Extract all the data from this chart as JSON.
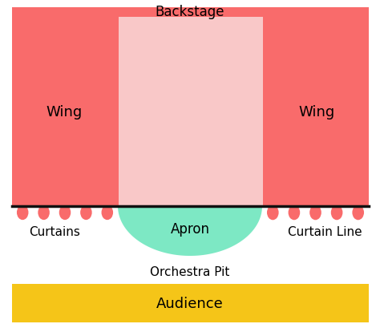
{
  "bg_color": "#ffffff",
  "wing_color": "#f96b6b",
  "stage_color": "#f9c8c8",
  "apron_color": "#7de8c4",
  "curtain_color": "#f96b6b",
  "audience_color": "#f5c518",
  "curtain_line_color": "#111111",
  "labels": {
    "backstage": "Backstage",
    "wing_left": "Wing",
    "wing_right": "Wing",
    "curtains": "Curtains",
    "curtain_line": "Curtain Line",
    "apron": "Apron",
    "orchestra_pit": "Orchestra Pit",
    "audience": "Audience"
  },
  "font_size": 12
}
